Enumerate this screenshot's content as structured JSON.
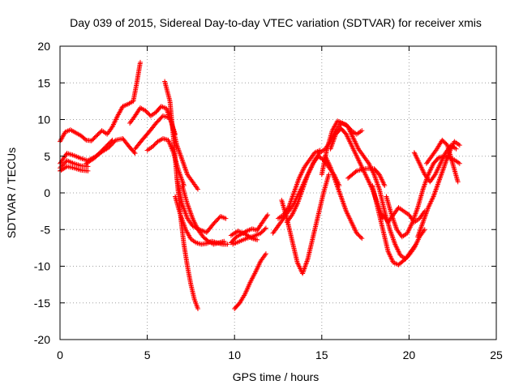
{
  "chart_data": {
    "type": "scatter",
    "title": "Day 039 of 2015, Sidereal Day-to-day VTEC variation (SDTVAR) for receiver xmis",
    "xlabel": "GPS time / hours",
    "ylabel": "SDTVAR / TECUs",
    "xlim": [
      0,
      25
    ],
    "ylim": [
      -20,
      20
    ],
    "xticks": [
      "0",
      "5",
      "10",
      "15",
      "20",
      "25"
    ],
    "yticks": [
      "-20",
      "-15",
      "-10",
      "-5",
      "0",
      "5",
      "10",
      "15",
      "20"
    ],
    "grid": true,
    "marker": "+",
    "color": "#ff0000",
    "series": [
      {
        "x": [
          0.0,
          0.3,
          0.6,
          0.9,
          1.2,
          1.5,
          1.8,
          2.1,
          2.4,
          2.7,
          3.0,
          3.3,
          3.6,
          3.9,
          4.2,
          4.4,
          4.6
        ],
        "y": [
          7.0,
          8.3,
          8.6,
          8.2,
          7.8,
          7.2,
          7.1,
          7.8,
          8.5,
          8.0,
          9.0,
          10.5,
          11.8,
          12.1,
          12.5,
          15.0,
          17.8
        ]
      },
      {
        "x": [
          0.0,
          0.4,
          0.8,
          1.2,
          1.6,
          2.0,
          2.4,
          2.8,
          3.2,
          3.6,
          4.0,
          4.3
        ],
        "y": [
          4.0,
          5.4,
          5.1,
          4.7,
          4.4,
          4.9,
          5.6,
          6.2,
          7.2,
          7.4,
          6.2,
          5.4
        ]
      },
      {
        "x": [
          0.0,
          0.4,
          0.8,
          1.2,
          1.6
        ],
        "y": [
          3.4,
          4.4,
          4.0,
          3.7,
          3.6
        ]
      },
      {
        "x": [
          0.0,
          0.4,
          0.8,
          1.2,
          1.6
        ],
        "y": [
          3.0,
          3.6,
          3.4,
          3.1,
          3.0
        ]
      },
      {
        "x": [
          1.5,
          2.0,
          2.5,
          3.0
        ],
        "y": [
          4.0,
          4.8,
          6.0,
          7.2
        ]
      },
      {
        "x": [
          4.0,
          4.3,
          4.6,
          4.9,
          5.2,
          5.5,
          5.8,
          6.1,
          6.4,
          6.7,
          7.0,
          7.3,
          7.6,
          7.9
        ],
        "y": [
          9.5,
          10.5,
          11.6,
          11.2,
          10.5,
          11.0,
          11.8,
          11.5,
          9.5,
          6.5,
          4.5,
          2.5,
          1.5,
          0.5
        ]
      },
      {
        "x": [
          4.3,
          4.7,
          5.1,
          5.5,
          5.9,
          6.3,
          6.6
        ],
        "y": [
          6.0,
          7.2,
          8.3,
          9.5,
          10.5,
          10.2,
          8.0
        ]
      },
      {
        "x": [
          5.0,
          5.3,
          5.6,
          5.9,
          6.2,
          6.5,
          6.8,
          7.1
        ],
        "y": [
          5.8,
          6.3,
          7.0,
          7.4,
          7.2,
          5.5,
          3.0,
          1.0
        ]
      },
      {
        "x": [
          6.0,
          6.3,
          6.5,
          6.7,
          6.9,
          7.1,
          7.3,
          7.5,
          7.7,
          7.9
        ],
        "y": [
          15.2,
          12.5,
          7.5,
          2.0,
          -3.0,
          -7.0,
          -10.0,
          -12.5,
          -14.5,
          -15.8
        ]
      },
      {
        "x": [
          6.7,
          7.0,
          7.3,
          7.6,
          8.0,
          8.4,
          8.8,
          9.2,
          9.5
        ],
        "y": [
          2.0,
          -1.5,
          -3.5,
          -4.5,
          -5.0,
          -5.4,
          -4.2,
          -3.2,
          -3.5
        ]
      },
      {
        "x": [
          6.6,
          6.9,
          7.2,
          7.5,
          7.8,
          8.1,
          8.4,
          8.7,
          9.0,
          9.3,
          9.6
        ],
        "y": [
          -0.5,
          -3.0,
          -5.0,
          -6.3,
          -6.8,
          -7.0,
          -6.9,
          -6.6,
          -6.8,
          -7.0,
          -7.0
        ]
      },
      {
        "x": [
          7.0,
          7.3,
          7.6,
          7.9,
          8.2,
          8.5,
          8.8,
          9.1,
          9.4
        ],
        "y": [
          1.0,
          -1.5,
          -3.5,
          -5.0,
          -6.0,
          -6.6,
          -7.0,
          -6.8,
          -6.6
        ]
      },
      {
        "x": [
          9.8,
          10.1,
          10.4,
          10.7,
          11.0,
          11.3,
          11.6,
          11.9
        ],
        "y": [
          -6.8,
          -6.0,
          -5.6,
          -5.2,
          -4.9,
          -5.1,
          -4.0,
          -3.0
        ]
      },
      {
        "x": [
          9.8,
          10.2,
          10.6,
          11.0,
          11.3
        ],
        "y": [
          -5.8,
          -5.2,
          -5.6,
          -6.2,
          -6.4
        ]
      },
      {
        "x": [
          9.9,
          10.3,
          10.7,
          11.1,
          11.5,
          11.8
        ],
        "y": [
          -7.0,
          -6.6,
          -6.2,
          -5.9,
          -5.5,
          -4.8
        ]
      },
      {
        "x": [
          10.0,
          10.3,
          10.6,
          10.9,
          11.2,
          11.5,
          11.8
        ],
        "y": [
          -15.8,
          -15.0,
          -13.8,
          -12.2,
          -10.8,
          -9.3,
          -8.3
        ]
      },
      {
        "x": [
          12.2,
          12.5,
          12.8,
          13.1,
          13.4,
          13.7,
          14.0,
          14.3,
          14.6,
          14.9,
          15.2,
          15.5,
          15.8,
          16.1,
          16.4,
          16.7,
          17.0,
          17.3
        ],
        "y": [
          -5.5,
          -4.5,
          -3.5,
          -2.5,
          -1.5,
          0.0,
          1.5,
          3.0,
          4.5,
          5.5,
          6.0,
          7.0,
          8.5,
          9.5,
          9.3,
          8.5,
          8.0,
          8.5
        ]
      },
      {
        "x": [
          12.5,
          12.8,
          13.1,
          13.4,
          13.7,
          14.0,
          14.3,
          14.6,
          14.9
        ],
        "y": [
          -3.5,
          -3.0,
          -2.0,
          0.0,
          2.0,
          3.5,
          4.5,
          5.5,
          5.8
        ]
      },
      {
        "x": [
          13.0,
          13.3,
          13.6,
          13.9,
          14.2,
          14.5,
          14.8,
          15.1,
          15.4,
          15.7,
          16.0
        ],
        "y": [
          -4.0,
          -3.0,
          -1.5,
          0.5,
          2.5,
          4.0,
          5.0,
          4.5,
          3.5,
          2.5,
          1.0
        ]
      },
      {
        "x": [
          12.7,
          13.0,
          13.3,
          13.6,
          13.9,
          14.2,
          14.5,
          14.8,
          15.1,
          15.4
        ],
        "y": [
          -1.0,
          -3.5,
          -6.5,
          -9.5,
          -11.0,
          -9.0,
          -6.0,
          -3.0,
          0.0,
          2.5
        ]
      },
      {
        "x": [
          15.0,
          15.3,
          15.6,
          15.9,
          16.2,
          16.5,
          16.8,
          17.1,
          17.4,
          17.7,
          18.0,
          18.3,
          18.6,
          18.9,
          19.2,
          19.5,
          19.8,
          20.1,
          20.4
        ],
        "y": [
          2.5,
          6.0,
          8.5,
          9.8,
          9.5,
          9.0,
          7.5,
          6.0,
          5.0,
          4.0,
          2.5,
          0.5,
          -2.5,
          -5.0,
          -7.0,
          -8.5,
          -9.0,
          -8.0,
          -7.0
        ]
      },
      {
        "x": [
          15.2,
          15.5,
          15.8,
          16.1,
          16.4,
          16.7,
          17.0,
          17.3
        ],
        "y": [
          5.0,
          3.5,
          1.5,
          -0.5,
          -2.5,
          -4.0,
          -5.5,
          -6.2
        ]
      },
      {
        "x": [
          15.5,
          15.8,
          16.1,
          16.4,
          16.7,
          17.0,
          17.3,
          17.6,
          17.9,
          18.2,
          18.5
        ],
        "y": [
          6.0,
          8.0,
          8.8,
          8.0,
          6.5,
          5.0,
          3.5,
          2.0,
          0.5,
          -1.5,
          -3.5
        ]
      },
      {
        "x": [
          16.5,
          17.0,
          17.5,
          18.0,
          18.3,
          18.6
        ],
        "y": [
          2.0,
          3.0,
          3.3,
          3.3,
          2.5,
          1.0
        ]
      },
      {
        "x": [
          18.5,
          18.8,
          19.1,
          19.4,
          19.7,
          20.0,
          20.3,
          20.6,
          20.9
        ],
        "y": [
          -3.0,
          -4.0,
          -3.0,
          -2.0,
          -2.5,
          -3.0,
          -4.0,
          -3.5,
          -2.5
        ]
      },
      {
        "x": [
          17.9,
          18.2,
          18.5,
          18.8,
          19.1,
          19.4,
          19.7,
          20.0,
          20.3,
          20.6,
          20.9
        ],
        "y": [
          1.0,
          -2.0,
          -5.0,
          -8.0,
          -9.5,
          -9.8,
          -9.2,
          -8.5,
          -7.5,
          -6.0,
          -5.0
        ]
      },
      {
        "x": [
          18.7,
          19.0,
          19.3,
          19.6,
          19.9,
          20.2,
          20.5,
          20.8,
          21.1,
          21.4,
          21.7,
          22.0,
          22.3,
          22.6,
          22.9
        ],
        "y": [
          -0.5,
          -3.0,
          -5.0,
          -6.0,
          -5.5,
          -4.0,
          -2.0,
          0.5,
          2.5,
          4.0,
          4.8,
          5.0,
          4.8,
          4.5,
          4.0
        ]
      },
      {
        "x": [
          20.3,
          20.6,
          20.9,
          21.2,
          21.5,
          21.8,
          22.1,
          22.4,
          22.7
        ],
        "y": [
          5.5,
          4.0,
          2.5,
          1.5,
          2.5,
          4.0,
          5.5,
          6.5,
          6.0
        ]
      },
      {
        "x": [
          20.5,
          20.8,
          21.1,
          21.4,
          21.7,
          22.0,
          22.3,
          22.6,
          22.9
        ],
        "y": [
          -6.0,
          -4.0,
          -2.0,
          -0.5,
          1.5,
          3.5,
          5.5,
          7.0,
          6.5
        ]
      },
      {
        "x": [
          21.0,
          21.3,
          21.6,
          21.9,
          22.2,
          22.5,
          22.8
        ],
        "y": [
          4.0,
          5.0,
          6.0,
          7.2,
          6.5,
          4.0,
          1.5
        ]
      }
    ]
  }
}
